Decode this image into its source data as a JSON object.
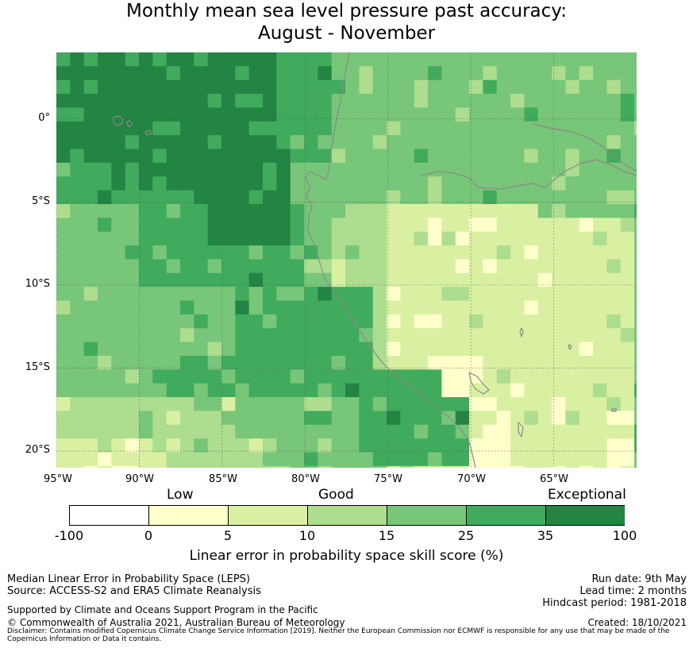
{
  "title": {
    "line1": "Monthly mean sea level pressure past accuracy:",
    "line2": "August - November"
  },
  "map": {
    "lon_range": [
      -95,
      -60
    ],
    "lat_range": [
      -21,
      4
    ],
    "lon_ticks": [
      "95°W",
      "90°W",
      "85°W",
      "80°W",
      "75°W",
      "70°W",
      "65°W"
    ],
    "lat_ticks": [
      "0°",
      "5°S",
      "10°S",
      "15°S",
      "20°S"
    ],
    "grid": true,
    "coastline_color": "#8a8a8a",
    "gridline_color": "#555555"
  },
  "colorbar": {
    "categories": [
      "Low",
      "Good",
      "Exceptional"
    ],
    "ticks": [
      "-100",
      "0",
      "5",
      "10",
      "15",
      "25",
      "35",
      "100"
    ],
    "colors": [
      "#ffffff",
      "#ffffcc",
      "#d9f0a3",
      "#addd8e",
      "#78c679",
      "#41ab5d",
      "#238443"
    ],
    "label": "Linear error in probability space skill score (%)"
  },
  "footer": {
    "left": [
      "Median Linear Error in Probability Space (LEPS)",
      "Source: ACCESS-S2 and ERA5 Climate Reanalysis"
    ],
    "right": [
      "Run date: 9th May",
      "Lead time: 2 months",
      "Hindcast period: 1981-2018"
    ],
    "support": "Supported by Climate and Oceans Support Program in the Pacific",
    "copyright": "© Commonwealth of Australia 2021, Australian Bureau of Meteorology",
    "created": "Created: 18/10/2021",
    "disclaimer": "Disclaimer: Contains modified Copernicus Climate Change Service Information [2019]. Neither the European Commission nor ECMWF is responsible for any use that may be made of the Copernicus Information or Data it contains."
  }
}
